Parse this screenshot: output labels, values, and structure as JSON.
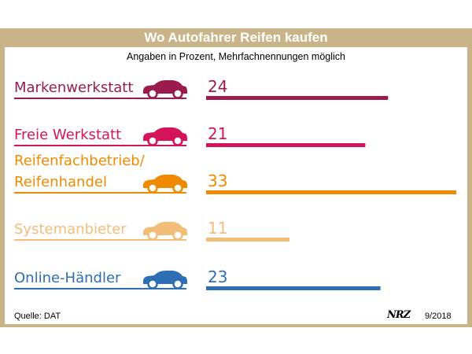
{
  "title": "Wo Autofahrer Reifen kaufen",
  "subtitle": "Angaben in Prozent, Mehrfachnennungen möglich",
  "footer": {
    "source": "Quelle: DAT",
    "logo": "NRZ",
    "date": "9/2018"
  },
  "chart_data": {
    "type": "bar",
    "orientation": "horizontal",
    "categories": [
      "Markenwerkstatt",
      "Freie Werkstatt",
      "Reifenfachbetrieb/ Reifenhandel",
      "Systemanbieter",
      "Online-Händler"
    ],
    "label_lines": [
      [
        "Markenwerkstatt"
      ],
      [
        "Freie Werkstatt"
      ],
      [
        "Reifenfachbetrieb/",
        "Reifenhandel"
      ],
      [
        "Systemanbieter"
      ],
      [
        "Online-Händler"
      ]
    ],
    "values": [
      24,
      21,
      33,
      11,
      23
    ],
    "colors": [
      "#9b1b4e",
      "#d4145a",
      "#ef8a00",
      "#f2bd78",
      "#2d6eb5"
    ],
    "icon": "car-icon",
    "xlim": [
      0,
      33
    ]
  }
}
